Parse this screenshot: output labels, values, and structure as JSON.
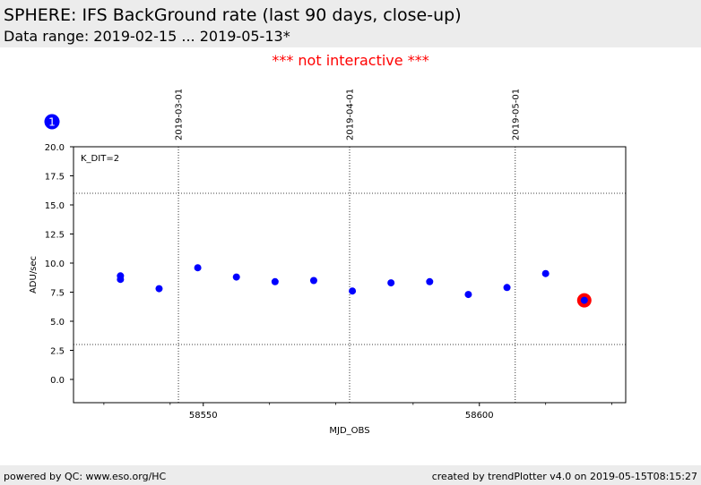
{
  "header": {
    "title": "SPHERE: IFS BackGround rate (last 90 days, close-up)",
    "subtitle": "Data range: 2019-02-15 ... 2019-05-13*"
  },
  "notice": "*** not interactive ***",
  "marker_badge": "1",
  "footer": {
    "left": "powered by QC: www.eso.org/HC",
    "right": "created by trendPlotter v4.0 on 2019-05-15T08:15:27"
  },
  "chart_data": {
    "type": "scatter",
    "title": "",
    "xlabel": "MJD_OBS",
    "ylabel": "ADU/sec",
    "annotation": "K_DIT=2",
    "xlim": [
      58526.5,
      58626.5
    ],
    "ylim": [
      -2,
      20
    ],
    "x_ticks": [
      58550,
      58600
    ],
    "y_ticks": [
      0.0,
      2.5,
      5.0,
      7.5,
      10.0,
      12.5,
      15.0,
      17.5,
      20.0
    ],
    "y_tick_labels": [
      "0.0",
      "2.5",
      "5.0",
      "7.5",
      "10.0",
      "12.5",
      "15.0",
      "17.5",
      "20.0"
    ],
    "minor_x_ticks": [
      58532,
      58544,
      58562,
      58574,
      58588,
      58612,
      58624
    ],
    "date_markers": [
      {
        "label": "2019-03-01",
        "x": 58545.5
      },
      {
        "label": "2019-04-01",
        "x": 58576.5
      },
      {
        "label": "2019-05-01",
        "x": 58606.5
      }
    ],
    "thresholds": [
      16.0,
      3.0
    ],
    "points": [
      {
        "x": 58535,
        "y": 8.9
      },
      {
        "x": 58535,
        "y": 8.6
      },
      {
        "x": 58542,
        "y": 7.8
      },
      {
        "x": 58549,
        "y": 9.6
      },
      {
        "x": 58556,
        "y": 8.8
      },
      {
        "x": 58563,
        "y": 8.4
      },
      {
        "x": 58570,
        "y": 8.5
      },
      {
        "x": 58577,
        "y": 7.6
      },
      {
        "x": 58584,
        "y": 8.3
      },
      {
        "x": 58591,
        "y": 8.4
      },
      {
        "x": 58598,
        "y": 7.3
      },
      {
        "x": 58605,
        "y": 7.9
      },
      {
        "x": 58612,
        "y": 9.1
      },
      {
        "x": 58619,
        "y": 6.8,
        "highlight": true
      }
    ],
    "grid": false,
    "colors": {
      "points": "#0000ff",
      "highlight": "#ff0000",
      "badge": "#0000ff"
    }
  }
}
